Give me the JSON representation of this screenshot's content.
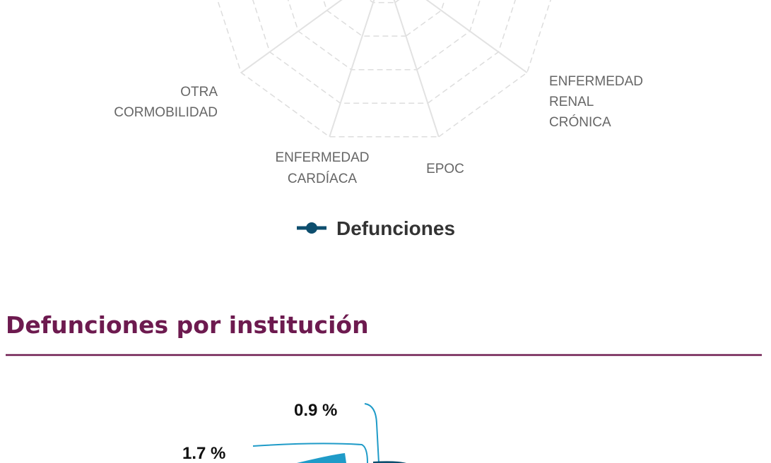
{
  "radar": {
    "axis_labels": [
      [
        "OTRA",
        "CORMOBILIDAD"
      ],
      [
        "ENFERMEDAD",
        "CARDÍACA"
      ],
      [
        "EPOC"
      ],
      [
        "ENFERMEDAD",
        "RENAL",
        "CRÓNICA"
      ]
    ],
    "legend": "Defunciones"
  },
  "section": {
    "title": "Defunciones por institución"
  },
  "pie": {
    "labels": [
      "0.9 %",
      "1.7 %"
    ]
  }
}
